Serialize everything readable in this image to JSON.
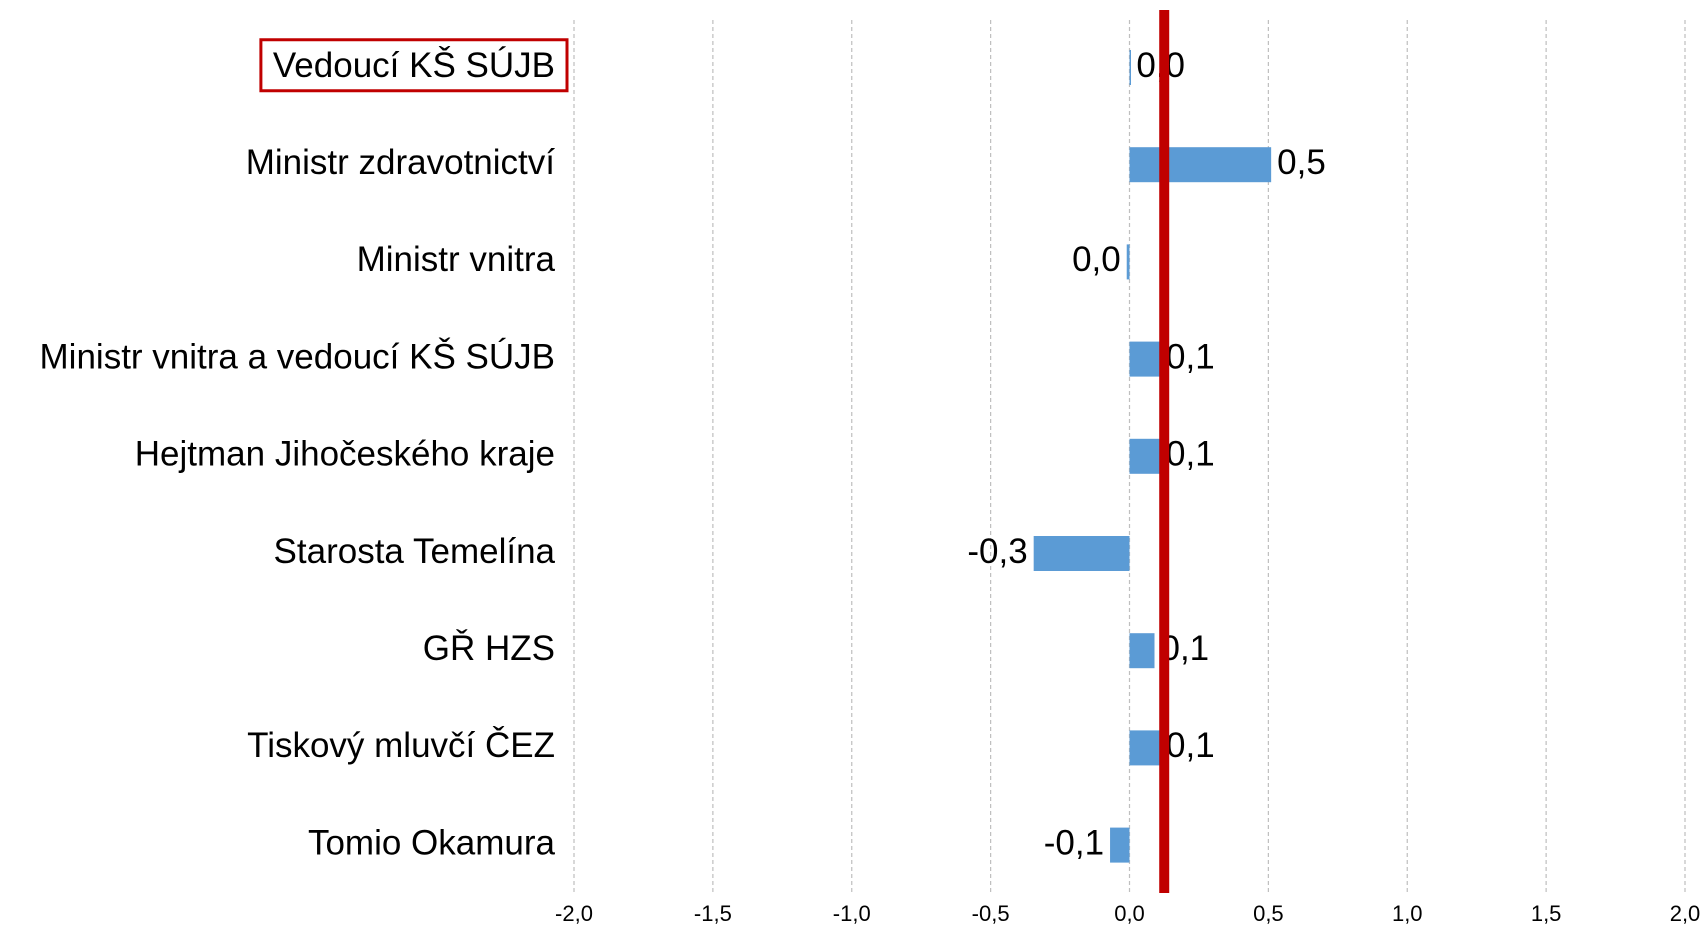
{
  "chart_data": {
    "type": "bar",
    "orientation": "horizontal",
    "categories": [
      "Vedoucí KŠ SÚJB",
      "Ministr zdravotnictví",
      "Ministr vnitra",
      "Ministr vnitra a vedoucí KŠ SÚJB",
      "Hejtman Jihočeského kraje",
      "Starosta Temelína",
      "GŘ HZS",
      "Tiskový mluvčí ČEZ",
      "Tomio Okamura"
    ],
    "values": [
      0.003,
      0.51,
      -0.01,
      0.11,
      0.11,
      -0.345,
      0.09,
      0.11,
      -0.07
    ],
    "value_labels": [
      "0,0",
      "0,5",
      "0,0",
      "0,1",
      "0,1",
      "-0,3",
      "0,1",
      "0,1",
      "-0,1"
    ],
    "color": "#5b9bd5",
    "xlim": [
      -2,
      2
    ],
    "xticks": [
      {
        "value": -2,
        "label": "-2,0"
      },
      {
        "value": -1.5,
        "label": "-1,5"
      },
      {
        "value": -1,
        "label": "-1,0"
      },
      {
        "value": -0.5,
        "label": "-0,5"
      },
      {
        "value": 0,
        "label": "0,0"
      },
      {
        "value": 0.5,
        "label": "0,5"
      },
      {
        "value": 1,
        "label": "1,0"
      },
      {
        "value": 1.5,
        "label": "1,5"
      },
      {
        "value": 2,
        "label": "2,0"
      }
    ],
    "grid": true,
    "reference_line": {
      "value": 0.125,
      "color": "#c00000"
    },
    "highlight_index": 0,
    "highlight_color": "#c00000"
  }
}
